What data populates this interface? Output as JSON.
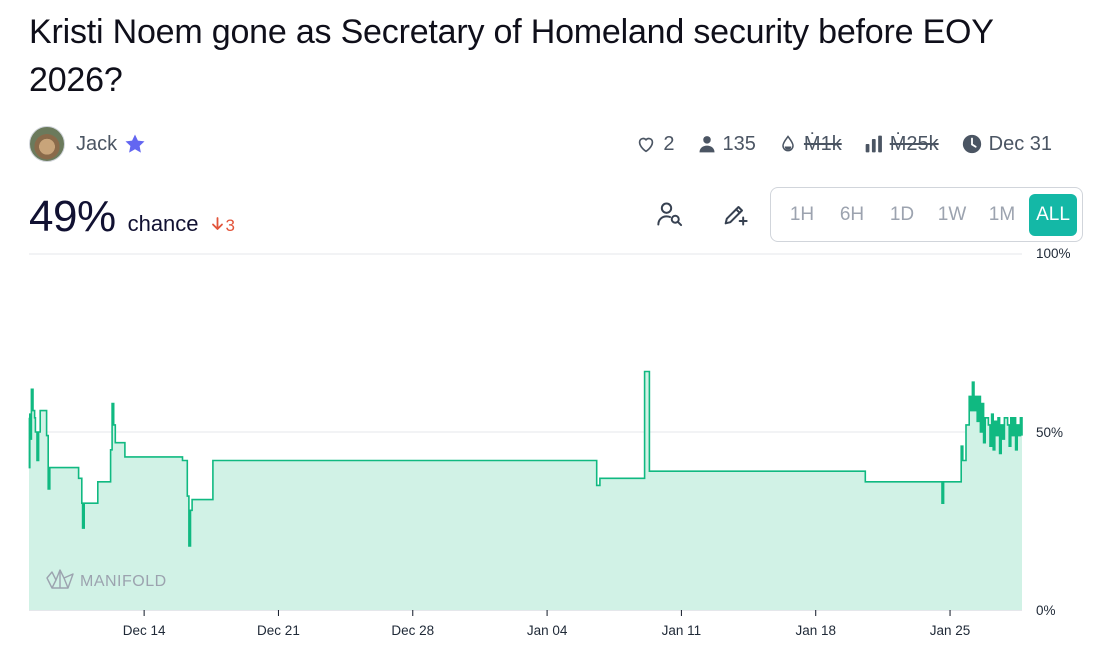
{
  "question": {
    "title": "Kristi Noem gone as Secretary of Homeland security before EOY 2026?"
  },
  "author": {
    "name": "Jack",
    "avatar_icon": "user-avatar",
    "badge_icon": "star-icon",
    "badge_color": "#6366f1"
  },
  "stats": {
    "likes": "2",
    "traders": "135",
    "liquidity": "Ṁ1k",
    "volume": "Ṁ25k",
    "close_date": "Dec 31"
  },
  "probability": {
    "value": "49%",
    "label": "chance",
    "change": "3",
    "change_direction": "down",
    "change_color": "#e2543a"
  },
  "toolbar": {
    "time_ranges": [
      "1H",
      "6H",
      "1D",
      "1W",
      "1M",
      "ALL"
    ],
    "active_range": "ALL",
    "active_color": "#14b8a6"
  },
  "chart_data": {
    "type": "area",
    "watermark": "MANIFOLD",
    "y_ticks": [
      "100%",
      "50%",
      "0%"
    ],
    "x_ticks": [
      "Dec 14",
      "Dec 21",
      "Dec 28",
      "Jan 04",
      "Jan 11",
      "Jan 18",
      "Jan 25"
    ],
    "ylim": [
      0,
      100
    ],
    "line_color": "#10b981",
    "fill_color": "#d1f2e6",
    "series": [
      {
        "points": [
          [
            "Dec 08 00:00",
            54
          ],
          [
            "Dec 08 00:30",
            40
          ],
          [
            "Dec 08 01:00",
            55
          ],
          [
            "Dec 08 02:00",
            48
          ],
          [
            "Dec 08 03:00",
            62
          ],
          [
            "Dec 08 05:00",
            56
          ],
          [
            "Dec 08 07:00",
            54
          ],
          [
            "Dec 08 08:00",
            50
          ],
          [
            "Dec 08 10:00",
            42
          ],
          [
            "Dec 08 12:00",
            50
          ],
          [
            "Dec 08 14:00",
            56
          ],
          [
            "Dec 08 18:00",
            56
          ],
          [
            "Dec 08 22:00",
            49
          ],
          [
            "Dec 09 00:00",
            34
          ],
          [
            "Dec 09 02:00",
            40
          ],
          [
            "Dec 10 12:00",
            40
          ],
          [
            "Dec 10 14:00",
            37
          ],
          [
            "Dec 10 18:00",
            30
          ],
          [
            "Dec 10 19:00",
            23
          ],
          [
            "Dec 10 21:00",
            30
          ],
          [
            "Dec 11 00:00",
            30
          ],
          [
            "Dec 11 14:00",
            36
          ],
          [
            "Dec 12 00:00",
            36
          ],
          [
            "Dec 12 06:00",
            45
          ],
          [
            "Dec 12 08:00",
            58
          ],
          [
            "Dec 12 10:00",
            52
          ],
          [
            "Dec 12 12:00",
            47
          ],
          [
            "Dec 12 18:00",
            47
          ],
          [
            "Dec 13 00:00",
            43
          ],
          [
            "Dec 14 12:00",
            43
          ],
          [
            "Dec 16 00:00",
            42
          ],
          [
            "Dec 16 06:00",
            32
          ],
          [
            "Dec 16 08:00",
            18
          ],
          [
            "Dec 16 10:00",
            28
          ],
          [
            "Dec 16 12:00",
            31
          ],
          [
            "Dec 17 12:00",
            31
          ],
          [
            "Dec 17 14:00",
            42
          ],
          [
            "Jan 06 12:00",
            42
          ],
          [
            "Jan 06 14:00",
            35
          ],
          [
            "Jan 06 18:00",
            37
          ],
          [
            "Jan 09 00:00",
            37
          ],
          [
            "Jan 09 02:00",
            67
          ],
          [
            "Jan 09 06:00",
            67
          ],
          [
            "Jan 09 08:00",
            39
          ],
          [
            "Jan 20 12:00",
            39
          ],
          [
            "Jan 20 14:00",
            36
          ],
          [
            "Jan 24 12:00",
            36
          ],
          [
            "Jan 24 14:00",
            30
          ],
          [
            "Jan 24 16:00",
            36
          ],
          [
            "Jan 25 12:00",
            36
          ],
          [
            "Jan 25 14:00",
            46
          ],
          [
            "Jan 25 16:00",
            42
          ],
          [
            "Jan 25 20:00",
            52
          ],
          [
            "Jan 26 00:00",
            60
          ],
          [
            "Jan 26 02:00",
            56
          ],
          [
            "Jan 26 04:00",
            64
          ],
          [
            "Jan 26 06:00",
            56
          ],
          [
            "Jan 26 08:00",
            60
          ],
          [
            "Jan 26 10:00",
            53
          ],
          [
            "Jan 26 12:00",
            60
          ],
          [
            "Jan 26 14:00",
            50
          ],
          [
            "Jan 26 16:00",
            58
          ],
          [
            "Jan 26 18:00",
            47
          ],
          [
            "Jan 26 20:00",
            54
          ],
          [
            "Jan 27 00:00",
            52
          ],
          [
            "Jan 27 02:00",
            46
          ],
          [
            "Jan 27 04:00",
            55
          ],
          [
            "Jan 27 06:00",
            45
          ],
          [
            "Jan 27 08:00",
            53
          ],
          [
            "Jan 27 10:00",
            49
          ],
          [
            "Jan 27 12:00",
            54
          ],
          [
            "Jan 27 14:00",
            44
          ],
          [
            "Jan 27 16:00",
            52
          ],
          [
            "Jan 27 18:00",
            48
          ],
          [
            "Jan 27 20:00",
            54
          ],
          [
            "Jan 28 00:00",
            52
          ],
          [
            "Jan 28 02:00",
            46
          ],
          [
            "Jan 28 04:00",
            54
          ],
          [
            "Jan 28 06:00",
            49
          ],
          [
            "Jan 28 08:00",
            54
          ],
          [
            "Jan 28 10:00",
            45
          ],
          [
            "Jan 28 12:00",
            52
          ],
          [
            "Jan 28 14:00",
            49
          ],
          [
            "Jan 28 16:00",
            54
          ],
          [
            "Jan 28 18:00",
            49
          ]
        ]
      }
    ]
  }
}
